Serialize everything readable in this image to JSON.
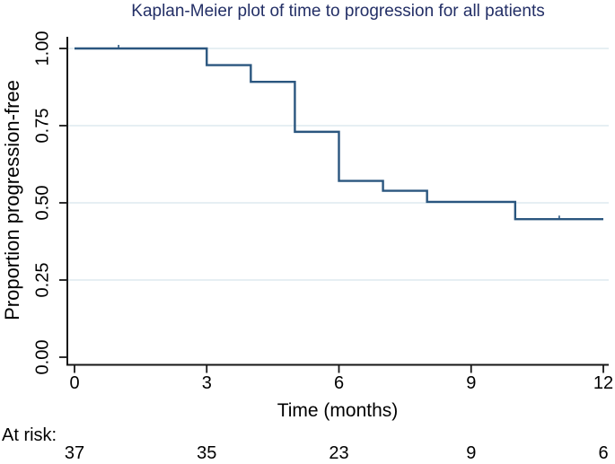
{
  "title": "Kaplan-Meier plot of time to progression for all patients",
  "colors": {
    "title_text": "#232f66",
    "curve": "#2a567f",
    "gridline": "#e6eff3",
    "axis": "#161616",
    "text": "#000000",
    "background": "#ffffff"
  },
  "chart_data": {
    "type": "line",
    "subtype": "kaplan-meier-step",
    "title": "Kaplan-Meier plot of time to progression for all patients",
    "xlabel": "Time (months)",
    "ylabel": "Proportion progression-free",
    "xlim": [
      0,
      12
    ],
    "ylim": [
      0,
      1
    ],
    "x_ticks": [
      0,
      3,
      6,
      9,
      12
    ],
    "y_ticks": [
      {
        "label": "0.00",
        "value": 0
      },
      {
        "label": "0.25",
        "value": 0.25
      },
      {
        "label": "0.50",
        "value": 0.5
      },
      {
        "label": "0.75",
        "value": 0.75
      },
      {
        "label": "1.00",
        "value": 1
      }
    ],
    "grid": "horizontal-only",
    "legend": "none",
    "series": [
      {
        "name": "All patients",
        "step": "post",
        "x": [
          0,
          3,
          4,
          5,
          6,
          7,
          8,
          10,
          12
        ],
        "y": [
          1.0,
          0.946,
          0.892,
          0.73,
          0.571,
          0.539,
          0.503,
          0.447,
          0.447
        ]
      }
    ],
    "censor_marks": [
      {
        "x": 1,
        "y": 1.0
      },
      {
        "x": 11,
        "y": 0.447
      }
    ],
    "at_risk": {
      "label": "At risk:",
      "times": [
        0,
        3,
        6,
        9,
        12
      ],
      "counts": [
        37,
        35,
        23,
        9,
        6
      ]
    }
  }
}
